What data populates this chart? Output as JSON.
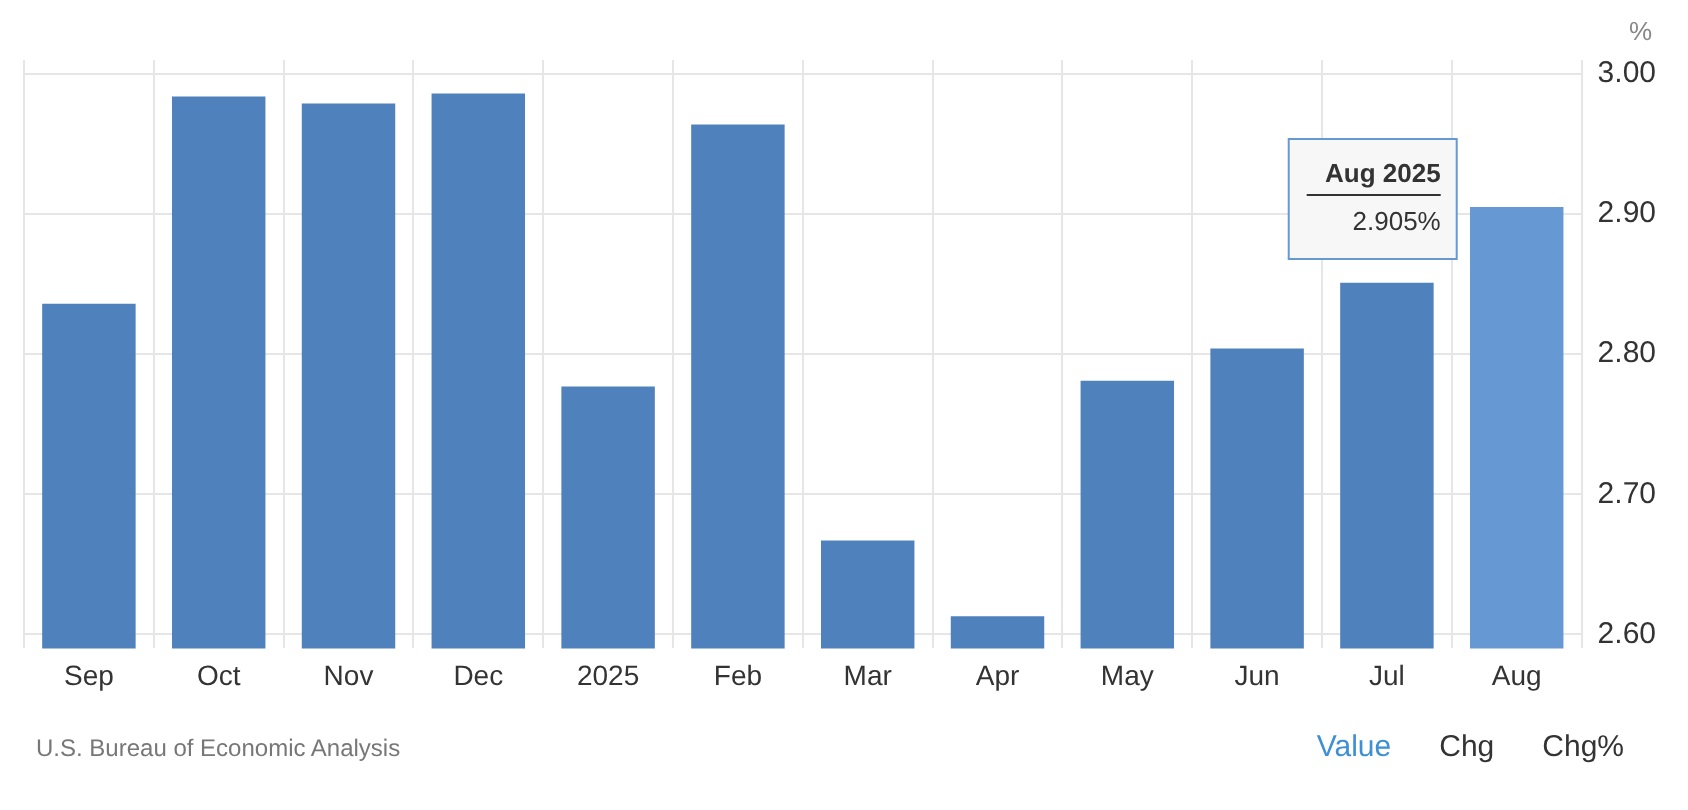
{
  "chart_data": {
    "type": "bar",
    "ylabel": "%",
    "categories": [
      "Sep",
      "Oct",
      "Nov",
      "Dec",
      "2025",
      "Feb",
      "Mar",
      "Apr",
      "May",
      "Jun",
      "Jul",
      "Aug"
    ],
    "values": [
      2.836,
      2.984,
      2.979,
      2.986,
      2.777,
      2.964,
      2.667,
      2.613,
      2.781,
      2.804,
      2.851,
      2.905
    ],
    "colors": [
      "#4f81bd",
      "#4f81bd",
      "#4f81bd",
      "#4f81bd",
      "#4f81bd",
      "#4f81bd",
      "#4f81bd",
      "#4f81bd",
      "#4f81bd",
      "#4f81bd",
      "#4f81bd",
      "#6699d4"
    ],
    "ylim": [
      2.59,
      3.01
    ],
    "yticks": [
      {
        "value": 2.6,
        "label": "2.60"
      },
      {
        "value": 2.7,
        "label": "2.70"
      },
      {
        "value": 2.8,
        "label": "2.80"
      },
      {
        "value": 2.9,
        "label": "2.90"
      },
      {
        "value": 3.0,
        "label": "3.00"
      }
    ],
    "grid": true,
    "legend": false,
    "annotations": [
      "Aug 2025",
      "2.905%",
      "U.S. Bureau of Economic Analysis",
      "Value",
      "Chg",
      "Chg%"
    ]
  }
}
